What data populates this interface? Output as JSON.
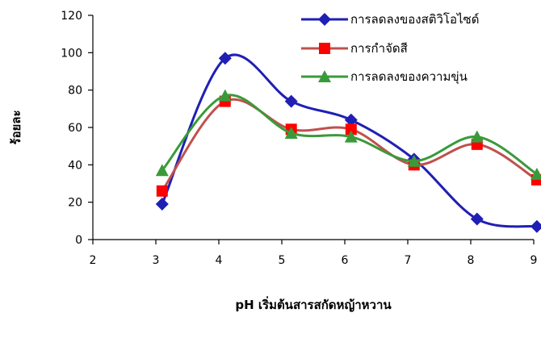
{
  "chart_data": {
    "type": "line",
    "xlabel": "pH เริ่มต้นสารสกัดหญ้าหวาน",
    "ylabel": "ร้อยละ",
    "xlim": [
      2,
      9
    ],
    "ylim": [
      0,
      120
    ],
    "x_ticks": [
      "2",
      "3",
      "4",
      "5",
      "6",
      "7",
      "8",
      "9"
    ],
    "y_ticks": [
      "0",
      "20",
      "40",
      "60",
      "80",
      "100",
      "120"
    ],
    "grid": false,
    "legend_position": "top-right",
    "series": [
      {
        "name": "การลดลงของสติวิโอไซด์",
        "color": "#1f1fb4",
        "marker": "diamond",
        "x": [
          3.1,
          4.1,
          5.15,
          6.1,
          7.1,
          8.1,
          9.05
        ],
        "values": [
          19,
          97,
          74,
          64,
          43,
          11,
          7
        ]
      },
      {
        "name": "การกำจัดสี",
        "color": "#c0504d",
        "marker_color": "#ff0000",
        "marker": "square",
        "x": [
          3.1,
          4.1,
          5.15,
          6.1,
          7.1,
          8.1,
          9.05
        ],
        "values": [
          26,
          74,
          59,
          59,
          40,
          51,
          32
        ]
      },
      {
        "name": "การลดลงของความขุ่น",
        "color": "#3a9a3a",
        "marker": "triangle",
        "x": [
          3.1,
          4.1,
          5.15,
          6.1,
          7.1,
          8.1,
          9.05
        ],
        "values": [
          37,
          77,
          57,
          55,
          42,
          55,
          35
        ]
      }
    ]
  }
}
